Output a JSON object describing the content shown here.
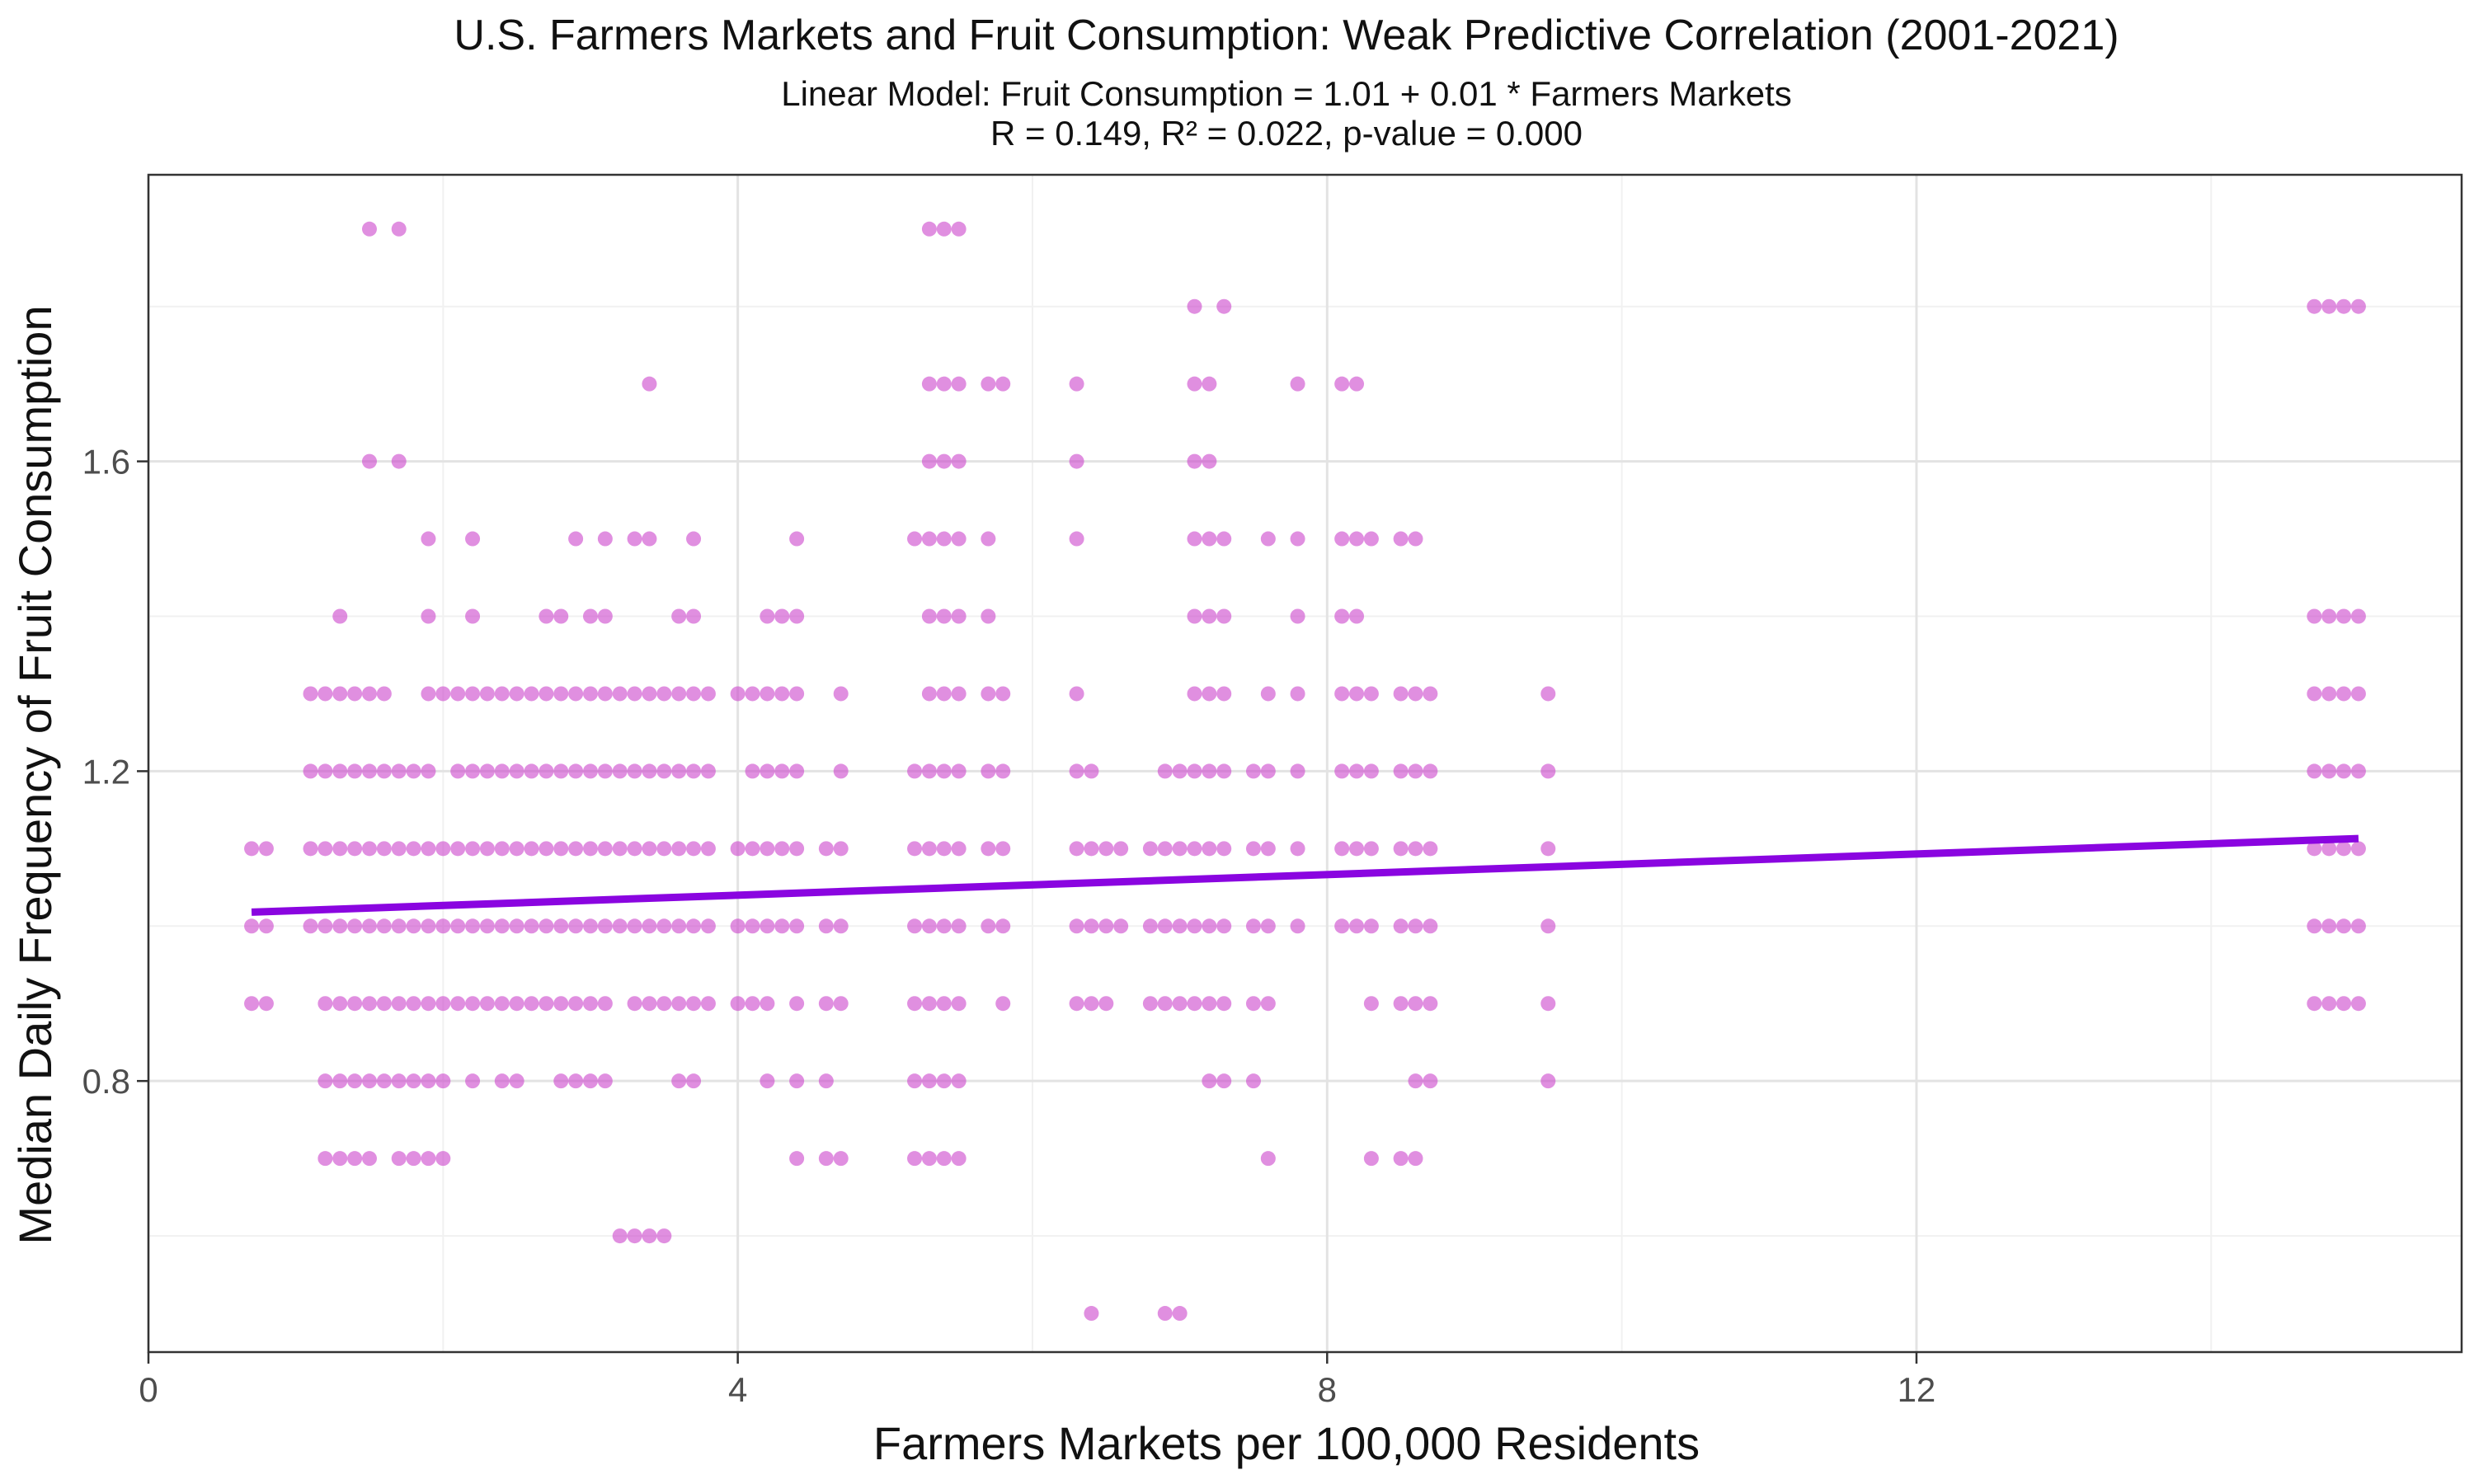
{
  "chart_data": {
    "type": "scatter",
    "title": "U.S. Farmers Markets and Fruit Consumption: Weak Predictive Correlation (2001-2021)",
    "subtitle_lines": [
      "Linear Model: Fruit Consumption = 1.01 + 0.01 * Farmers Markets",
      "R = 0.149, R² = 0.022, p-value = 0.000"
    ],
    "xlabel": "Farmers Markets per 100,000 Residents",
    "ylabel": "Median Daily Frequency of Fruit Consumption",
    "xlim": [
      0,
      15.7
    ],
    "ylim": [
      0.45,
      1.97
    ],
    "x_ticks": [
      0,
      4,
      8,
      12
    ],
    "x_tick_labels": [
      "0",
      "4",
      "8",
      "12"
    ],
    "x_minor": [
      2,
      6,
      10,
      14
    ],
    "y_ticks": [
      0.8,
      1.2,
      1.6
    ],
    "y_tick_labels": [
      "0.8",
      "1.2",
      "1.6"
    ],
    "y_minor": [
      0.6,
      1.0,
      1.4,
      1.8
    ],
    "grid": true,
    "point_color": "#cc44cc",
    "line_color": "#8a05e0",
    "fit_line": {
      "x": [
        0.7,
        15.0
      ],
      "y": [
        1.018,
        1.113
      ]
    },
    "columns": [
      {
        "x": 0.7,
        "y": [
          0.9,
          1.0,
          1.1
        ]
      },
      {
        "x": 0.8,
        "y": [
          0.9,
          1.0,
          1.1
        ]
      },
      {
        "x": 1.1,
        "y": [
          1.0,
          1.1,
          1.2,
          1.3
        ]
      },
      {
        "x": 1.2,
        "y": [
          0.7,
          0.8,
          0.9,
          1.0,
          1.1,
          1.2,
          1.3
        ]
      },
      {
        "x": 1.3,
        "y": [
          0.7,
          0.8,
          0.9,
          1.0,
          1.1,
          1.2,
          1.3,
          1.4
        ]
      },
      {
        "x": 1.4,
        "y": [
          0.7,
          0.8,
          0.9,
          1.0,
          1.1,
          1.2,
          1.3
        ]
      },
      {
        "x": 1.5,
        "y": [
          0.7,
          0.8,
          0.9,
          1.0,
          1.1,
          1.2,
          1.3,
          1.6,
          1.9
        ]
      },
      {
        "x": 1.6,
        "y": [
          0.8,
          0.9,
          1.0,
          1.1,
          1.2,
          1.3
        ]
      },
      {
        "x": 1.7,
        "y": [
          0.7,
          0.8,
          0.9,
          1.0,
          1.1,
          1.2,
          1.6,
          1.9
        ]
      },
      {
        "x": 1.8,
        "y": [
          0.7,
          0.8,
          0.9,
          1.0,
          1.1,
          1.2
        ]
      },
      {
        "x": 1.9,
        "y": [
          0.7,
          0.8,
          0.9,
          1.0,
          1.1,
          1.2,
          1.3,
          1.4,
          1.5
        ]
      },
      {
        "x": 2.0,
        "y": [
          0.7,
          0.8,
          0.9,
          1.0,
          1.1,
          1.3
        ]
      },
      {
        "x": 2.1,
        "y": [
          0.9,
          1.0,
          1.1,
          1.2,
          1.3
        ]
      },
      {
        "x": 2.2,
        "y": [
          0.8,
          0.9,
          1.0,
          1.1,
          1.2,
          1.3,
          1.4,
          1.5
        ]
      },
      {
        "x": 2.3,
        "y": [
          0.9,
          1.0,
          1.1,
          1.2,
          1.3
        ]
      },
      {
        "x": 2.4,
        "y": [
          0.8,
          0.9,
          1.0,
          1.1,
          1.2,
          1.3
        ]
      },
      {
        "x": 2.5,
        "y": [
          0.8,
          0.9,
          1.0,
          1.1,
          1.2,
          1.3
        ]
      },
      {
        "x": 2.6,
        "y": [
          0.9,
          1.0,
          1.1,
          1.2,
          1.3
        ]
      },
      {
        "x": 2.7,
        "y": [
          0.9,
          1.0,
          1.1,
          1.2,
          1.3,
          1.4
        ]
      },
      {
        "x": 2.8,
        "y": [
          0.8,
          0.9,
          1.0,
          1.1,
          1.2,
          1.3,
          1.4
        ]
      },
      {
        "x": 2.9,
        "y": [
          0.8,
          0.9,
          1.0,
          1.1,
          1.2,
          1.3,
          1.5
        ]
      },
      {
        "x": 3.0,
        "y": [
          0.8,
          0.9,
          1.0,
          1.1,
          1.2,
          1.3,
          1.4
        ]
      },
      {
        "x": 3.1,
        "y": [
          0.8,
          0.9,
          1.0,
          1.1,
          1.2,
          1.3,
          1.4,
          1.5
        ]
      },
      {
        "x": 3.2,
        "y": [
          0.6,
          1.0,
          1.1,
          1.2,
          1.3
        ]
      },
      {
        "x": 3.3,
        "y": [
          0.6,
          0.9,
          1.0,
          1.1,
          1.2,
          1.3,
          1.5
        ]
      },
      {
        "x": 3.4,
        "y": [
          0.6,
          0.9,
          1.0,
          1.1,
          1.2,
          1.3,
          1.5,
          1.7
        ]
      },
      {
        "x": 3.5,
        "y": [
          0.6,
          0.9,
          1.0,
          1.1,
          1.2,
          1.3
        ]
      },
      {
        "x": 3.6,
        "y": [
          0.8,
          0.9,
          1.0,
          1.1,
          1.2,
          1.3,
          1.4
        ]
      },
      {
        "x": 3.7,
        "y": [
          0.8,
          0.9,
          1.0,
          1.1,
          1.2,
          1.3,
          1.4,
          1.5
        ]
      },
      {
        "x": 3.8,
        "y": [
          0.9,
          1.0,
          1.1,
          1.2,
          1.3
        ]
      },
      {
        "x": 4.0,
        "y": [
          0.9,
          1.0,
          1.1,
          1.3
        ]
      },
      {
        "x": 4.1,
        "y": [
          0.9,
          1.0,
          1.1,
          1.2,
          1.3
        ]
      },
      {
        "x": 4.2,
        "y": [
          0.8,
          0.9,
          1.0,
          1.1,
          1.2,
          1.3,
          1.4
        ]
      },
      {
        "x": 4.3,
        "y": [
          1.0,
          1.1,
          1.2,
          1.3,
          1.4
        ]
      },
      {
        "x": 4.4,
        "y": [
          0.7,
          0.8,
          0.9,
          1.0,
          1.1,
          1.2,
          1.3,
          1.4,
          1.5
        ]
      },
      {
        "x": 4.6,
        "y": [
          0.7,
          0.8,
          0.9,
          1.0,
          1.1
        ]
      },
      {
        "x": 4.7,
        "y": [
          0.7,
          0.9,
          1.0,
          1.1,
          1.2,
          1.3
        ]
      },
      {
        "x": 5.2,
        "y": [
          0.7,
          0.8,
          0.9,
          1.0,
          1.1,
          1.2,
          1.5
        ]
      },
      {
        "x": 5.3,
        "y": [
          0.7,
          0.8,
          0.9,
          1.0,
          1.1,
          1.2,
          1.3,
          1.4,
          1.5,
          1.6,
          1.7,
          1.9
        ]
      },
      {
        "x": 5.4,
        "y": [
          0.7,
          0.8,
          0.9,
          1.0,
          1.1,
          1.2,
          1.3,
          1.4,
          1.5,
          1.6,
          1.7,
          1.9
        ]
      },
      {
        "x": 5.5,
        "y": [
          0.7,
          0.8,
          0.9,
          1.0,
          1.1,
          1.2,
          1.3,
          1.4,
          1.5,
          1.6,
          1.7,
          1.9
        ]
      },
      {
        "x": 5.7,
        "y": [
          1.0,
          1.1,
          1.2,
          1.3,
          1.4,
          1.5,
          1.7
        ]
      },
      {
        "x": 5.8,
        "y": [
          0.9,
          1.0,
          1.1,
          1.2,
          1.3,
          1.7
        ]
      },
      {
        "x": 6.3,
        "y": [
          0.9,
          1.0,
          1.1,
          1.2,
          1.3,
          1.5,
          1.6,
          1.7
        ]
      },
      {
        "x": 6.4,
        "y": [
          0.5,
          0.9,
          1.0,
          1.1,
          1.2
        ]
      },
      {
        "x": 6.5,
        "y": [
          0.9,
          1.0,
          1.1
        ]
      },
      {
        "x": 6.6,
        "y": [
          1.0,
          1.1
        ]
      },
      {
        "x": 6.8,
        "y": [
          0.9,
          1.0,
          1.1
        ]
      },
      {
        "x": 6.9,
        "y": [
          0.5,
          0.9,
          1.0,
          1.1,
          1.2
        ]
      },
      {
        "x": 7.0,
        "y": [
          0.5,
          0.9,
          1.0,
          1.1,
          1.2
        ]
      },
      {
        "x": 7.1,
        "y": [
          0.9,
          1.0,
          1.1,
          1.2,
          1.3,
          1.4,
          1.5,
          1.6,
          1.7,
          1.8
        ]
      },
      {
        "x": 7.2,
        "y": [
          0.8,
          0.9,
          1.0,
          1.1,
          1.2,
          1.3,
          1.4,
          1.5,
          1.6,
          1.7
        ]
      },
      {
        "x": 7.3,
        "y": [
          0.8,
          0.9,
          1.0,
          1.1,
          1.2,
          1.3,
          1.4,
          1.5,
          1.8
        ]
      },
      {
        "x": 7.5,
        "y": [
          0.8,
          0.9,
          1.0,
          1.1,
          1.2
        ]
      },
      {
        "x": 7.6,
        "y": [
          0.7,
          0.9,
          1.0,
          1.1,
          1.2,
          1.3,
          1.5
        ]
      },
      {
        "x": 7.8,
        "y": [
          1.0,
          1.1,
          1.2,
          1.3,
          1.4,
          1.5,
          1.7
        ]
      },
      {
        "x": 8.1,
        "y": [
          1.0,
          1.1,
          1.2,
          1.3,
          1.4,
          1.5,
          1.7
        ]
      },
      {
        "x": 8.2,
        "y": [
          1.0,
          1.1,
          1.2,
          1.3,
          1.4,
          1.5,
          1.7
        ]
      },
      {
        "x": 8.3,
        "y": [
          0.7,
          0.9,
          1.0,
          1.1,
          1.2,
          1.3,
          1.5
        ]
      },
      {
        "x": 8.5,
        "y": [
          0.7,
          0.9,
          1.0,
          1.1,
          1.2,
          1.3,
          1.5
        ]
      },
      {
        "x": 8.6,
        "y": [
          0.7,
          0.8,
          0.9,
          1.0,
          1.1,
          1.2,
          1.3,
          1.5
        ]
      },
      {
        "x": 8.7,
        "y": [
          0.8,
          0.9,
          1.0,
          1.1,
          1.2,
          1.3
        ]
      },
      {
        "x": 9.5,
        "y": [
          0.8,
          0.9,
          1.0,
          1.1,
          1.2,
          1.3
        ]
      },
      {
        "x": 14.7,
        "y": [
          0.9,
          1.0,
          1.1,
          1.2,
          1.3,
          1.4,
          1.8
        ]
      },
      {
        "x": 14.8,
        "y": [
          0.9,
          1.0,
          1.1,
          1.2,
          1.3,
          1.4,
          1.8
        ]
      },
      {
        "x": 14.9,
        "y": [
          0.9,
          1.0,
          1.1,
          1.2,
          1.3,
          1.4,
          1.8
        ]
      },
      {
        "x": 15.0,
        "y": [
          0.9,
          1.0,
          1.1,
          1.2,
          1.3,
          1.4,
          1.8
        ]
      }
    ]
  }
}
